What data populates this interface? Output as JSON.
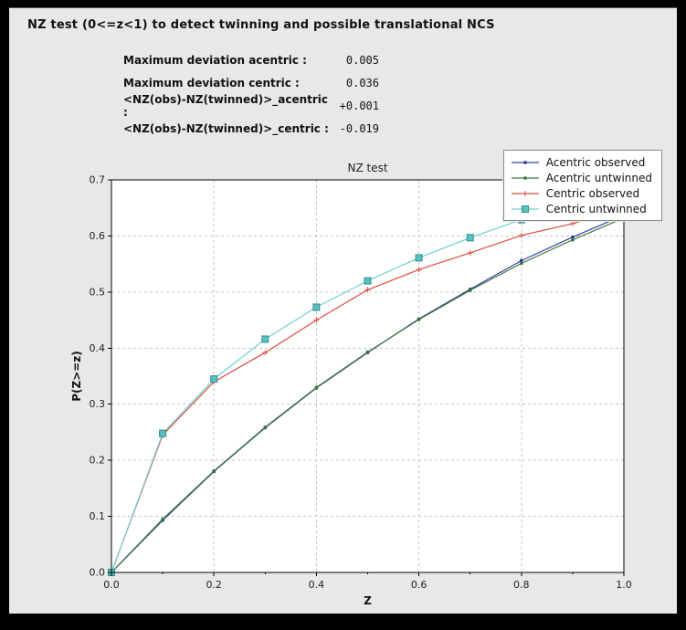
{
  "window": {
    "title": "NZ test (0<=z<1) to detect twinning and possible translational NCS"
  },
  "stats": [
    {
      "label": "Maximum deviation acentric :",
      "value": "0.005"
    },
    {
      "label": "Maximum deviation centric :",
      "value": "0.036"
    },
    {
      "label": "<NZ(obs)-NZ(twinned)>_acentric :",
      "value": "+0.001"
    },
    {
      "label": "<NZ(obs)-NZ(twinned)>_centric :",
      "value": "-0.019"
    }
  ],
  "chart_data": {
    "type": "line",
    "title": "NZ test",
    "xlabel": "Z",
    "ylabel": "P(Z>=z)",
    "xlim": [
      0.0,
      1.0
    ],
    "ylim": [
      0.0,
      0.7
    ],
    "x_ticks": [
      0.0,
      0.2,
      0.4,
      0.6,
      0.8,
      1.0
    ],
    "x_minor_ticks": [
      0.1,
      0.3,
      0.5,
      0.7,
      0.9
    ],
    "y_ticks": [
      0.0,
      0.1,
      0.2,
      0.3,
      0.4,
      0.5,
      0.6,
      0.7
    ],
    "grid": true,
    "legend_position": "top-right",
    "x": [
      0.0,
      0.1,
      0.2,
      0.3,
      0.4,
      0.5,
      0.6,
      0.7,
      0.8,
      0.9,
      1.0
    ],
    "series": [
      {
        "name": "Acentric observed",
        "color": "#303f9f",
        "marker": "circle",
        "values": [
          0.0,
          0.093,
          0.18,
          0.258,
          0.329,
          0.392,
          0.452,
          0.505,
          0.556,
          0.598,
          0.637
        ]
      },
      {
        "name": "Acentric untwinned",
        "color": "#3c7a3c",
        "marker": "circle",
        "values": [
          0.0,
          0.095,
          0.181,
          0.259,
          0.33,
          0.393,
          0.451,
          0.503,
          0.551,
          0.593,
          0.632
        ]
      },
      {
        "name": "Centric observed",
        "color": "#dd4b43",
        "marker": "plus",
        "values": [
          0.0,
          0.245,
          0.34,
          0.392,
          0.45,
          0.504,
          0.54,
          0.57,
          0.601,
          0.622,
          0.648
        ]
      },
      {
        "name": "Centric untwinned",
        "color": "#6fcfcf",
        "marker": "square",
        "marker_fill": "#5bc0c0",
        "marker_edge": "#2f8f8f",
        "values": [
          0.0,
          0.248,
          0.345,
          0.416,
          0.473,
          0.52,
          0.561,
          0.597,
          0.629,
          0.657,
          0.683
        ]
      }
    ]
  }
}
